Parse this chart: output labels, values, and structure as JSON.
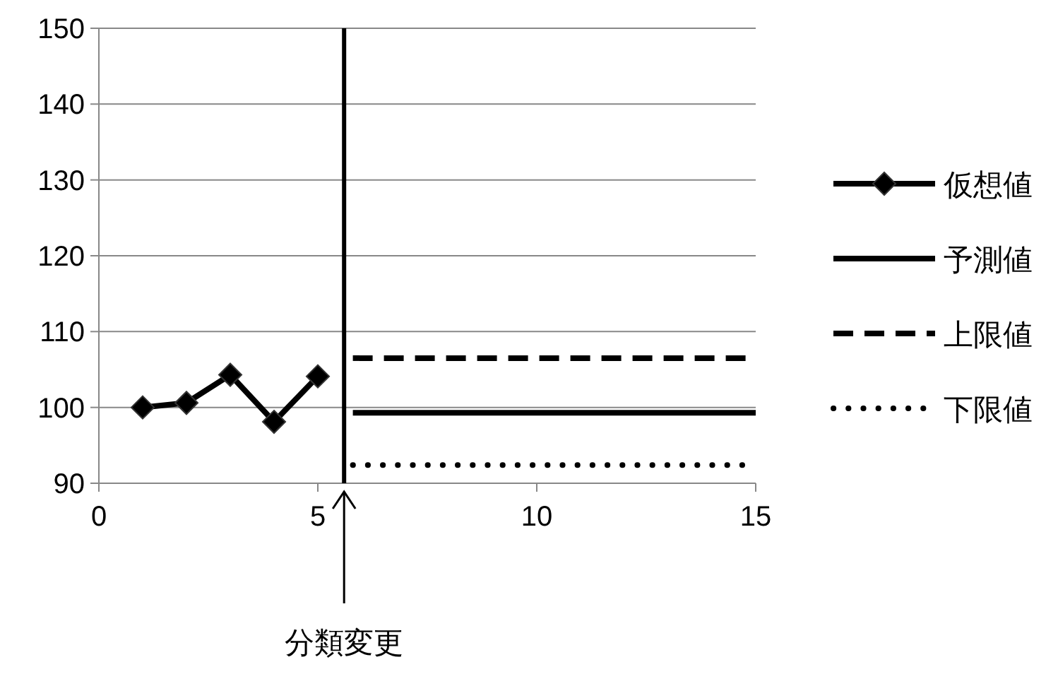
{
  "chart_data": {
    "type": "line",
    "xlim": [
      0,
      15
    ],
    "xticks": [
      0,
      5,
      10,
      15
    ],
    "ylim": [
      90,
      150
    ],
    "yticks": [
      90,
      100,
      110,
      120,
      130,
      140,
      150
    ],
    "grid": "y",
    "legend": "right",
    "series": [
      {
        "name": "仮想値",
        "color": "#000000",
        "x": [
          1,
          2,
          3,
          4,
          5
        ],
        "values": [
          100,
          100.6,
          104.3,
          98.1,
          104.1
        ],
        "marker": "diamond",
        "line_style": "solid"
      },
      {
        "name": "予測値",
        "color": "#000000",
        "x": [
          5.8,
          15
        ],
        "values": [
          99.3,
          99.3
        ],
        "marker": "none",
        "line_style": "solid"
      },
      {
        "name": "上限値",
        "color": "#000000",
        "x": [
          5.8,
          15
        ],
        "values": [
          106.5,
          106.5
        ],
        "marker": "none",
        "line_style": "dashed"
      },
      {
        "name": "下限値",
        "color": "#000000",
        "x": [
          5.8,
          15
        ],
        "values": [
          92.4,
          92.4
        ],
        "marker": "none",
        "line_style": "dotted"
      }
    ],
    "ref_lines": [
      {
        "axis": "x",
        "value": 5.6,
        "color": "#000000",
        "line_style": "solid"
      }
    ],
    "annotations": [
      "分類変更"
    ]
  }
}
